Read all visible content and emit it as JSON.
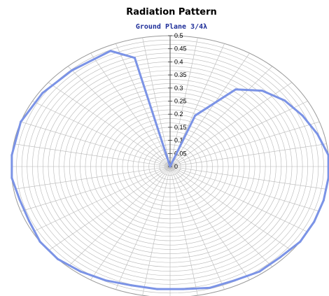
{
  "chart_data": {
    "type": "radar",
    "title": "Radiation Pattern",
    "subtitle": "Ground Plane 3/4λ",
    "radial_ticks": [
      "0",
      "0.05",
      "0.1",
      "0.15",
      "0.2",
      "0.25",
      "0.3",
      "0.35",
      "0.4",
      "0.45",
      "0.5"
    ],
    "rlim": [
      0,
      0.5
    ],
    "angular_divisions": 36,
    "grid": true,
    "series": [
      {
        "color": "#7b93e6",
        "points": [
          {
            "angle_deg": 0,
            "r": 0.0
          },
          {
            "angle_deg": 22,
            "r": 0.21
          },
          {
            "angle_deg": 35,
            "r": 0.36
          },
          {
            "angle_deg": 45,
            "r": 0.41
          },
          {
            "angle_deg": 55,
            "r": 0.44
          },
          {
            "angle_deg": 65,
            "r": 0.46
          },
          {
            "angle_deg": 75,
            "r": 0.48
          },
          {
            "angle_deg": 85,
            "r": 0.5
          },
          {
            "angle_deg": 95,
            "r": 0.5
          },
          {
            "angle_deg": 105,
            "r": 0.5
          },
          {
            "angle_deg": 115,
            "r": 0.5
          },
          {
            "angle_deg": 125,
            "r": 0.5
          },
          {
            "angle_deg": 135,
            "r": 0.49
          },
          {
            "angle_deg": 145,
            "r": 0.49
          },
          {
            "angle_deg": 155,
            "r": 0.48
          },
          {
            "angle_deg": 165,
            "r": 0.48
          },
          {
            "angle_deg": 175,
            "r": 0.47
          },
          {
            "angle_deg": 185,
            "r": 0.47
          },
          {
            "angle_deg": 195,
            "r": 0.47
          },
          {
            "angle_deg": 205,
            "r": 0.48
          },
          {
            "angle_deg": 215,
            "r": 0.49
          },
          {
            "angle_deg": 225,
            "r": 0.5
          },
          {
            "angle_deg": 235,
            "r": 0.5
          },
          {
            "angle_deg": 245,
            "r": 0.49
          },
          {
            "angle_deg": 255,
            "r": 0.49
          },
          {
            "angle_deg": 265,
            "r": 0.5
          },
          {
            "angle_deg": 275,
            "r": 0.5
          },
          {
            "angle_deg": 290,
            "r": 0.5
          },
          {
            "angle_deg": 305,
            "r": 0.49
          },
          {
            "angle_deg": 320,
            "r": 0.48
          },
          {
            "angle_deg": 337,
            "r": 0.48
          },
          {
            "angle_deg": 345,
            "r": 0.43
          },
          {
            "angle_deg": 360,
            "r": 0.0
          }
        ]
      }
    ]
  }
}
